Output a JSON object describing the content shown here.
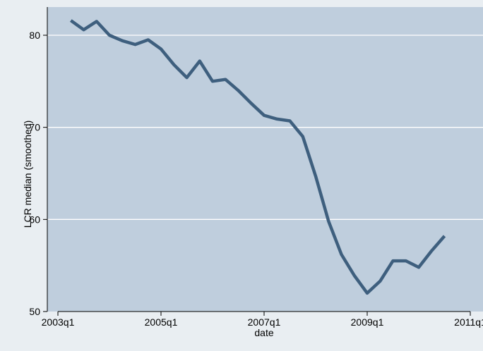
{
  "chart_data": {
    "type": "line",
    "title": "",
    "xlabel": "date",
    "ylabel": "LCR median (smoothed)",
    "xlim": [
      "2003q1",
      "2011q1"
    ],
    "ylim": [
      50,
      80
    ],
    "x_ticks": [
      "2003q1",
      "2005q1",
      "2007q1",
      "2009q1",
      "2011q1"
    ],
    "y_ticks": [
      50,
      60,
      70,
      80
    ],
    "grid": "horizontal",
    "legend": "none",
    "colors": {
      "background": "#e9eef2",
      "plot_background": "#bfcedd",
      "gridline": "#ffffff",
      "line": "#3e5f7e",
      "axis": "#000000"
    },
    "series": [
      {
        "x": [
          "2003q2",
          "2003q3",
          "2003q4",
          "2004q1",
          "2004q2",
          "2004q3",
          "2004q4",
          "2005q1",
          "2005q2",
          "2005q3",
          "2005q4",
          "2006q1",
          "2006q2",
          "2006q3",
          "2006q4",
          "2007q1",
          "2007q2",
          "2007q3",
          "2007q4",
          "2008q1",
          "2008q2",
          "2008q3",
          "2008q4",
          "2009q1",
          "2009q2",
          "2009q3",
          "2009q4",
          "2010q1",
          "2010q2",
          "2010q3"
        ],
        "values": [
          81.6,
          80.6,
          81.5,
          80.0,
          79.4,
          79.0,
          79.5,
          78.5,
          76.8,
          75.4,
          77.2,
          75.0,
          75.2,
          74.0,
          72.6,
          71.3,
          70.9,
          70.7,
          69.0,
          64.7,
          59.8,
          56.2,
          53.9,
          52.0,
          53.3,
          55.5,
          55.5,
          54.8,
          56.6,
          58.2
        ]
      }
    ]
  }
}
